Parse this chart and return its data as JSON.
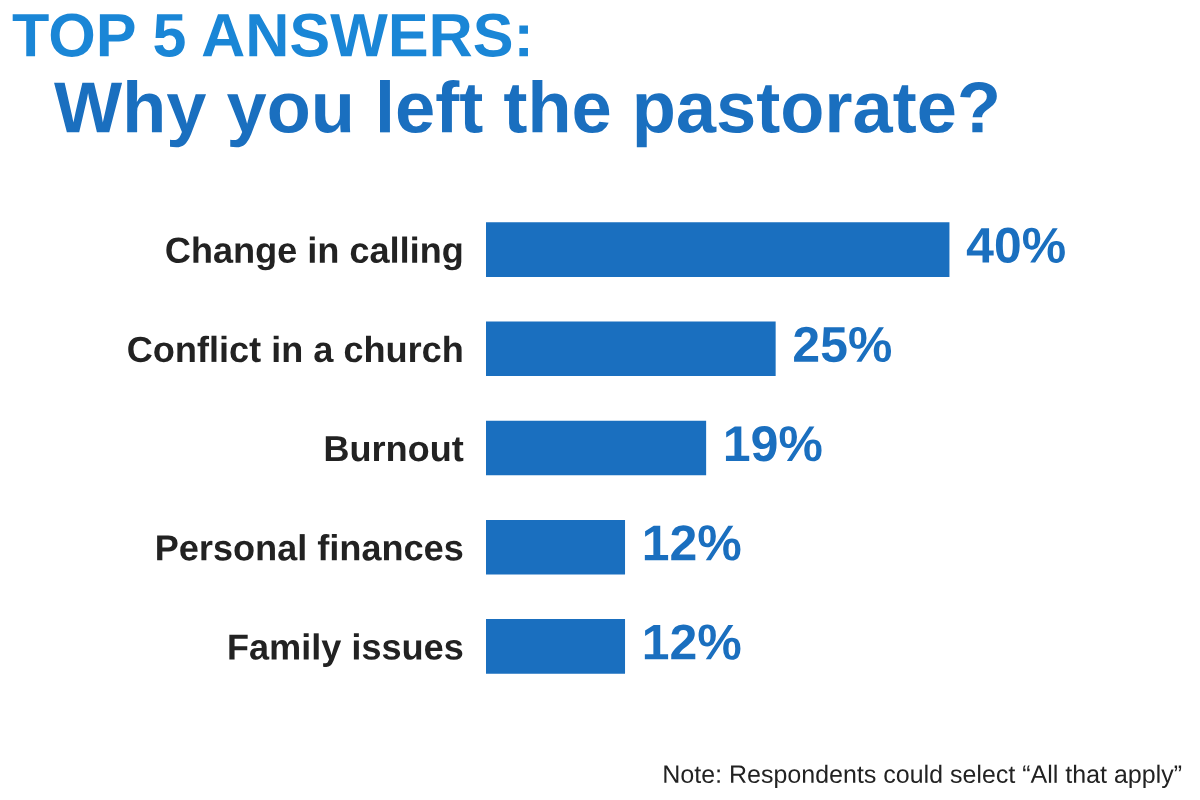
{
  "chart_data": {
    "type": "bar",
    "orientation": "horizontal",
    "title": "TOP 5 ANSWERS:",
    "subtitle": "Why you left the pastorate?",
    "categories": [
      "Change in calling",
      "Conflict in a church",
      "Burnout",
      "Personal finances",
      "Family issues"
    ],
    "values": [
      40,
      25,
      19,
      12,
      12
    ],
    "color": "#1a6fbf",
    "data_labels": true,
    "value_labels": [
      "40%",
      "25%",
      "19%",
      "12%",
      "12%"
    ],
    "annotations": [
      "Note: Respondents could select “All that apply”"
    ]
  }
}
